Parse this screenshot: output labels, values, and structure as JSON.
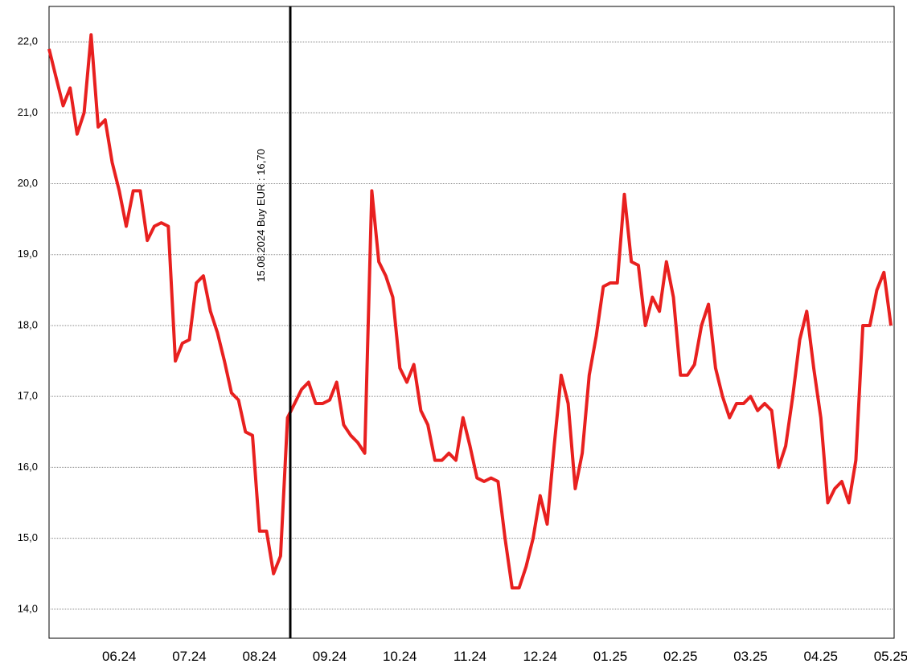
{
  "chart_data": {
    "type": "line",
    "categories": [
      null,
      null,
      null,
      null,
      null,
      null,
      null,
      null,
      null,
      null,
      "06.24",
      null,
      null,
      null,
      null,
      null,
      null,
      null,
      null,
      null,
      "07.24",
      null,
      null,
      null,
      null,
      null,
      null,
      null,
      null,
      null,
      "08.24",
      null,
      null,
      null,
      null,
      null,
      null,
      null,
      null,
      null,
      "09.24",
      null,
      null,
      null,
      null,
      null,
      null,
      null,
      null,
      null,
      "10.24",
      null,
      null,
      null,
      null,
      null,
      null,
      null,
      null,
      null,
      "11.24",
      null,
      null,
      null,
      null,
      null,
      null,
      null,
      null,
      null,
      "12.24",
      null,
      null,
      null,
      null,
      null,
      null,
      null,
      null,
      null,
      "01.25",
      null,
      null,
      null,
      null,
      null,
      null,
      null,
      null,
      null,
      "02.25",
      null,
      null,
      null,
      null,
      null,
      null,
      null,
      null,
      null,
      "03.25",
      null,
      null,
      null,
      null,
      null,
      null,
      null,
      null,
      null,
      "04.25",
      null,
      null,
      null,
      null,
      null,
      null,
      null,
      null,
      null,
      "05.25"
    ],
    "series": [
      {
        "color": "#e8201f",
        "values": [
          21.9,
          21.5,
          21.1,
          21.35,
          20.7,
          21.0,
          22.1,
          20.8,
          20.9,
          20.3,
          19.9,
          19.4,
          19.9,
          19.9,
          19.2,
          19.4,
          19.45,
          19.4,
          17.5,
          17.75,
          17.8,
          18.6,
          18.7,
          18.2,
          17.9,
          17.5,
          17.05,
          16.95,
          16.5,
          16.45,
          15.1,
          15.1,
          14.5,
          14.75,
          16.7,
          16.9,
          17.1,
          17.2,
          16.9,
          16.9,
          16.95,
          17.2,
          16.6,
          16.45,
          16.35,
          16.2,
          19.9,
          18.9,
          18.7,
          18.4,
          17.4,
          17.2,
          17.45,
          16.8,
          16.6,
          16.1,
          16.1,
          16.2,
          16.1,
          16.7,
          16.3,
          15.85,
          15.8,
          15.85,
          15.8,
          15.0,
          14.3,
          14.3,
          14.6,
          15.0,
          15.6,
          15.2,
          16.3,
          17.3,
          16.9,
          15.7,
          16.2,
          17.3,
          17.85,
          18.55,
          18.6,
          18.6,
          19.85,
          18.9,
          18.85,
          18.0,
          18.4,
          18.2,
          18.9,
          18.4,
          17.3,
          17.3,
          17.45,
          18.0,
          18.3,
          17.4,
          17.0,
          16.7,
          16.9,
          16.9,
          17.0,
          16.8,
          16.9,
          16.8,
          16.0,
          16.3,
          17.0,
          17.8,
          18.2,
          17.4,
          16.7,
          15.5,
          15.7,
          15.8,
          15.5,
          16.1,
          18.0,
          18.0,
          18.5,
          18.75,
          18.0
        ]
      }
    ],
    "ylim": [
      13.59,
      22.5
    ],
    "yticks": [
      {
        "value": 14,
        "label": "14,0"
      },
      {
        "value": 15,
        "label": "15,0"
      },
      {
        "value": 16,
        "label": "16,0"
      },
      {
        "value": 17,
        "label": "17,0"
      },
      {
        "value": 18,
        "label": "18,0"
      },
      {
        "value": 19,
        "label": "19,0"
      },
      {
        "value": 20,
        "label": "20,0"
      },
      {
        "value": 21,
        "label": "21,0"
      },
      {
        "value": 22,
        "label": "22,0"
      }
    ],
    "grid": true,
    "annotation": "15.08.2024 Buy EUR : 16,70"
  }
}
